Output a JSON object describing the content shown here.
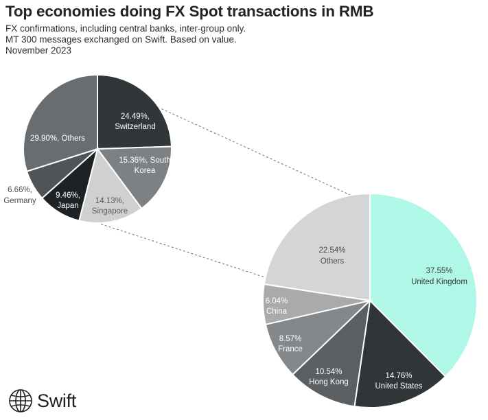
{
  "header": {
    "title": "Top economies doing FX Spot transactions in RMB",
    "subtitle_lines": [
      "FX confirmations, including central banks, inter-group only.",
      "MT 300 messages exchanged on Swift. Based on value.",
      "November 2023"
    ]
  },
  "brand": {
    "name": "Swift",
    "icon": "globe-icon"
  },
  "chart_data": {
    "type": "pie",
    "title": "Top economies doing FX Spot transactions in RMB",
    "variant": "pie-of-pie",
    "main_pie": {
      "slices": [
        {
          "label": "United Kingdom",
          "value": 37.55,
          "text": "37.55%",
          "color": "#aff7e6",
          "text_color": "#3a3c3e"
        },
        {
          "label": "United States",
          "value": 14.76,
          "text": "14.76%",
          "color": "#303638",
          "text_color": "#ffffff"
        },
        {
          "label": "Hong Kong",
          "value": 10.54,
          "text": "10.54%",
          "color": "#5b5f62",
          "text_color": "#ffffff"
        },
        {
          "label": "France",
          "value": 8.57,
          "text": "8.57%",
          "color": "#85888b",
          "text_color": "#ffffff"
        },
        {
          "label": "China",
          "value": 6.04,
          "text": "6.04%",
          "color": "#a8aaac",
          "text_color": "#ffffff"
        },
        {
          "label": "Others",
          "value": 22.54,
          "text": "22.54%",
          "color": "#d4d5d6",
          "text_color": "#4a4c4e"
        }
      ]
    },
    "secondary_pie": {
      "breaks_out": "Others",
      "slices": [
        {
          "label": "Switzerland",
          "value": 24.49,
          "text": "24.49%,",
          "color": "#313638",
          "text_color": "#ffffff"
        },
        {
          "label": "South Korea",
          "value": 15.36,
          "text": "15.36%, South",
          "text2": "Korea",
          "color": "#7e8184",
          "text_color": "#ffffff"
        },
        {
          "label": "Singapore",
          "value": 14.13,
          "text": "14.13%,",
          "color": "#cfd0d1",
          "text_color": "#5a5c5e"
        },
        {
          "label": "Japan",
          "value": 9.46,
          "text": "9.46%,",
          "color": "#1f2224",
          "text_color": "#ffffff"
        },
        {
          "label": "Germany",
          "value": 6.66,
          "text": "6.66%,",
          "color": "#505457",
          "text_color": "#4a4c4e"
        },
        {
          "label": "Others",
          "value": 29.9,
          "text": "29.90%, Others",
          "color": "#6a6d70",
          "text_color": "#ffffff"
        }
      ]
    }
  }
}
